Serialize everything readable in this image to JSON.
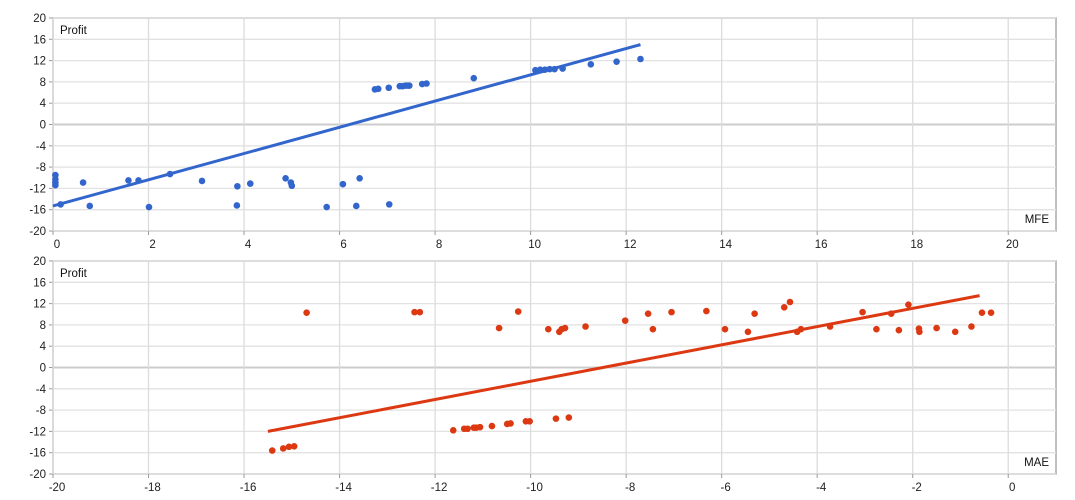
{
  "chart_data": [
    {
      "type": "scatter",
      "ylabel": "Profit",
      "xlabel": "MFE",
      "xlim": [
        0,
        21
      ],
      "ylim": [
        -20,
        20
      ],
      "xticks": [
        0,
        2,
        4,
        6,
        8,
        10,
        12,
        14,
        16,
        18,
        20
      ],
      "yticks": [
        20,
        16,
        12,
        8,
        4,
        0,
        -4,
        -8,
        -12,
        -16,
        -20
      ],
      "grid": true,
      "color": "#3366cc",
      "points": [
        [
          0.05,
          -9.5
        ],
        [
          0.05,
          -10.3
        ],
        [
          0.05,
          -10.9
        ],
        [
          0.05,
          -11.4
        ],
        [
          0.16,
          -15.0
        ],
        [
          0.63,
          -10.9
        ],
        [
          0.77,
          -15.3
        ],
        [
          1.58,
          -10.5
        ],
        [
          1.79,
          -10.5
        ],
        [
          2.01,
          -15.5
        ],
        [
          2.45,
          -9.3
        ],
        [
          3.12,
          -10.6
        ],
        [
          3.86,
          -11.6
        ],
        [
          3.85,
          -15.2
        ],
        [
          4.13,
          -11.1
        ],
        [
          4.87,
          -10.1
        ],
        [
          4.98,
          -10.9
        ],
        [
          5.0,
          -11.5
        ],
        [
          5.73,
          -15.5
        ],
        [
          6.07,
          -11.2
        ],
        [
          6.35,
          -15.3
        ],
        [
          6.42,
          -10.1
        ],
        [
          7.04,
          -15.0
        ],
        [
          6.74,
          6.6
        ],
        [
          6.81,
          6.7
        ],
        [
          7.03,
          6.9
        ],
        [
          7.26,
          7.2
        ],
        [
          7.32,
          7.2
        ],
        [
          7.38,
          7.3
        ],
        [
          7.43,
          7.3
        ],
        [
          7.46,
          7.3
        ],
        [
          7.73,
          7.6
        ],
        [
          7.82,
          7.7
        ],
        [
          8.81,
          8.7
        ],
        [
          10.1,
          10.2
        ],
        [
          10.2,
          10.3
        ],
        [
          10.3,
          10.3
        ],
        [
          10.4,
          10.4
        ],
        [
          10.5,
          10.4
        ],
        [
          10.67,
          10.5
        ],
        [
          11.26,
          11.3
        ],
        [
          11.8,
          11.8
        ],
        [
          12.3,
          12.3
        ]
      ],
      "trendline": [
        [
          0,
          -15.3
        ],
        [
          12.3,
          15.0
        ]
      ]
    },
    {
      "type": "scatter",
      "ylabel": "Profit",
      "xlabel": "MAE",
      "xlim": [
        -20,
        1
      ],
      "ylim": [
        -20,
        20
      ],
      "xticks": [
        -20,
        -18,
        -16,
        -14,
        -12,
        -10,
        -8,
        -6,
        -4,
        -2,
        0
      ],
      "yticks": [
        20,
        16,
        12,
        8,
        4,
        0,
        -4,
        -8,
        -12,
        -16,
        -20
      ],
      "grid": true,
      "color": "#dc3912",
      "points": [
        [
          -14.69,
          10.3
        ],
        [
          -12.43,
          10.4
        ],
        [
          -12.32,
          10.4
        ],
        [
          -10.66,
          7.4
        ],
        [
          -10.26,
          10.5
        ],
        [
          -15.41,
          -15.6
        ],
        [
          -15.18,
          -15.2
        ],
        [
          -15.06,
          -14.9
        ],
        [
          -14.95,
          -14.8
        ],
        [
          -11.62,
          -11.8
        ],
        [
          -11.39,
          -11.5
        ],
        [
          -11.32,
          -11.5
        ],
        [
          -11.19,
          -11.3
        ],
        [
          -11.14,
          -11.3
        ],
        [
          -11.06,
          -11.2
        ],
        [
          -10.81,
          -11.0
        ],
        [
          -10.49,
          -10.6
        ],
        [
          -10.42,
          -10.5
        ],
        [
          -10.1,
          -10.1
        ],
        [
          -10.02,
          -10.1
        ],
        [
          -9.47,
          -9.6
        ],
        [
          -9.2,
          -9.4
        ],
        [
          -9.63,
          7.2
        ],
        [
          -9.4,
          6.7
        ],
        [
          -9.35,
          7.2
        ],
        [
          -9.28,
          7.4
        ],
        [
          -8.85,
          7.7
        ],
        [
          -8.02,
          8.8
        ],
        [
          -7.54,
          10.1
        ],
        [
          -7.44,
          7.2
        ],
        [
          -7.05,
          10.4
        ],
        [
          -6.32,
          10.6
        ],
        [
          -5.93,
          7.2
        ],
        [
          -5.45,
          6.7
        ],
        [
          -5.31,
          10.1
        ],
        [
          -4.69,
          11.3
        ],
        [
          -4.57,
          12.3
        ],
        [
          -4.42,
          6.7
        ],
        [
          -4.34,
          7.2
        ],
        [
          -3.73,
          7.7
        ],
        [
          -3.05,
          10.4
        ],
        [
          -2.76,
          7.2
        ],
        [
          -2.45,
          10.1
        ],
        [
          -2.29,
          7.0
        ],
        [
          -2.09,
          11.8
        ],
        [
          -1.87,
          7.3
        ],
        [
          -1.86,
          6.7
        ],
        [
          -1.5,
          7.4
        ],
        [
          -1.11,
          6.7
        ],
        [
          -0.77,
          7.7
        ],
        [
          -0.55,
          10.3
        ],
        [
          -0.36,
          10.3
        ]
      ],
      "trendline": [
        [
          -15.5,
          -12.0
        ],
        [
          -0.6,
          13.5
        ]
      ]
    }
  ]
}
